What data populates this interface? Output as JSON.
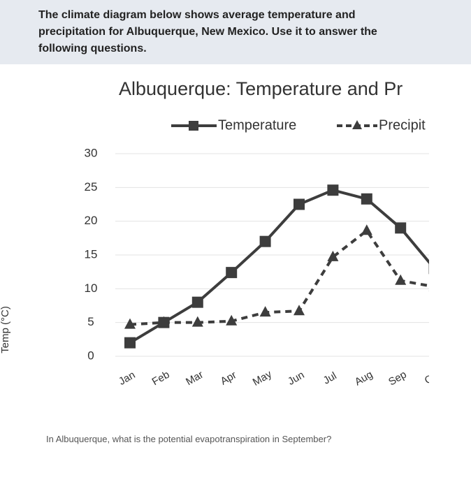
{
  "intro": "The climate diagram below shows average temperature and precipitation for Albuquerque, New Mexico.  Use it to answer the following questions.",
  "chart_data": {
    "type": "line",
    "title": "Albuquerque: Temperature and Pr",
    "y_label": "Temp (°C)",
    "categories": [
      "Jan",
      "Feb",
      "Mar",
      "Apr",
      "May",
      "Jun",
      "Jul",
      "Aug",
      "Sep",
      "Oc"
    ],
    "series": [
      {
        "name": "Temperature",
        "color": "#3d3d3d",
        "values": [
          2,
          5,
          8,
          12.4,
          17,
          22.5,
          24.6,
          23.3,
          19,
          13
        ]
      },
      {
        "name": "Precipit",
        "color": "#3d3d3d",
        "values": [
          4.7,
          5,
          5,
          5.2,
          6.5,
          6.7,
          14.7,
          18.6,
          11.2,
          10.3
        ]
      }
    ],
    "ylim": [
      0,
      30
    ],
    "yticks": [
      0,
      5,
      10,
      15,
      20,
      25,
      30
    ],
    "grid": true
  },
  "question": "In Albuquerque, what is the potential evapotranspiration in September?"
}
